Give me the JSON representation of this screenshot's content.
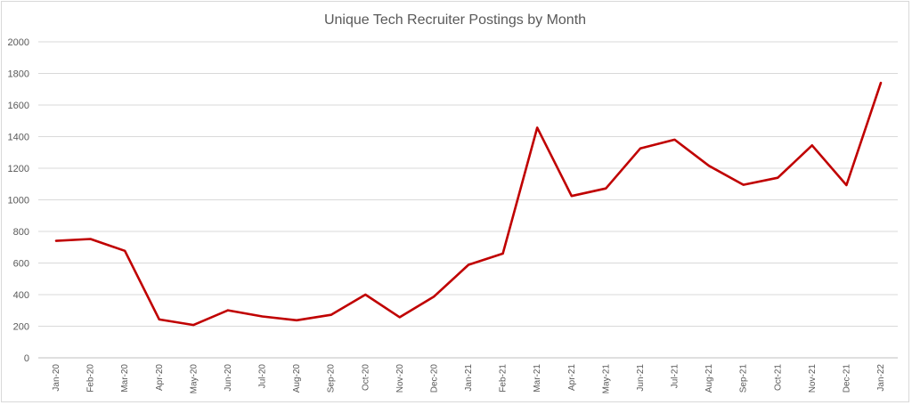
{
  "chart_data": {
    "type": "line",
    "title": "Unique Tech Recruiter Postings by Month",
    "xlabel": "",
    "ylabel": "",
    "ylim": [
      0,
      2000
    ],
    "yticks": [
      0,
      200,
      400,
      600,
      800,
      1000,
      1200,
      1400,
      1600,
      1800,
      2000
    ],
    "grid": true,
    "legend": "none",
    "line_color": "#c00000",
    "categories": [
      "Jan-20",
      "Feb-20",
      "Mar-20",
      "Apr-20",
      "May-20",
      "Jun-20",
      "Jul-20",
      "Aug-20",
      "Sep-20",
      "Oct-20",
      "Nov-20",
      "Dec-20",
      "Jan-21",
      "Feb-21",
      "Mar-21",
      "Apr-21",
      "May-21",
      "Jun-21",
      "Jul-21",
      "Aug-21",
      "Sep-21",
      "Oct-21",
      "Nov-21",
      "Dec-21",
      "Jan-22"
    ],
    "series": [
      {
        "values": [
          740,
          752,
          677,
          243,
          208,
          301,
          262,
          238,
          272,
          400,
          257,
          388,
          589,
          660,
          1457,
          1024,
          1072,
          1325,
          1381,
          1215,
          1095,
          1140,
          1345,
          1093,
          1740
        ]
      }
    ]
  }
}
